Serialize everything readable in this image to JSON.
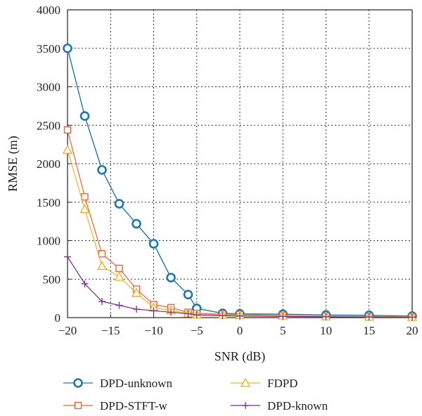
{
  "chart_data": {
    "type": "line",
    "xlabel": "SNR (dB)",
    "ylabel": "RMSE (m)",
    "xlim": [
      -20,
      20
    ],
    "ylim": [
      0,
      4000
    ],
    "xticks": [
      -20,
      -15,
      -10,
      -5,
      0,
      5,
      10,
      15,
      20
    ],
    "yticks": [
      0,
      500,
      1000,
      1500,
      2000,
      2500,
      3000,
      3500,
      4000
    ],
    "xtick_labels": [
      "−20",
      "−15",
      "−10",
      "−5",
      "0",
      "5",
      "10",
      "15",
      "20"
    ],
    "ytick_labels": [
      "0",
      "500",
      "1000",
      "1500",
      "2000",
      "2500",
      "3000",
      "3500",
      "4000"
    ],
    "grid": true,
    "legend_position": "bottom",
    "series": [
      {
        "name": "DPD-unknown",
        "color": "#1f77b4",
        "marker": "circle",
        "x": [
          -20,
          -18,
          -16,
          -14,
          -12,
          -10,
          -8,
          -6,
          -5,
          -2,
          0,
          5,
          10,
          15,
          20
        ],
        "y": [
          3500,
          2620,
          1920,
          1480,
          1220,
          960,
          520,
          300,
          120,
          55,
          50,
          45,
          35,
          30,
          20
        ]
      },
      {
        "name": "DPD-STFT-w",
        "color": "#e8653a",
        "marker": "square",
        "x": [
          -20,
          -18,
          -16,
          -14,
          -12,
          -10,
          -8,
          -6,
          -5,
          -2,
          0,
          5,
          10,
          15,
          20
        ],
        "y": [
          2440,
          1570,
          830,
          640,
          370,
          170,
          130,
          70,
          55,
          45,
          40,
          30,
          20,
          15,
          10
        ]
      },
      {
        "name": "FDPD",
        "color": "#f0b323",
        "marker": "triangle",
        "x": [
          -20,
          -18,
          -16,
          -14,
          -12,
          -10,
          -8,
          -6,
          -5,
          -2,
          0,
          5,
          10,
          15,
          20
        ],
        "y": [
          2180,
          1410,
          670,
          530,
          320,
          130,
          95,
          55,
          40,
          35,
          30,
          25,
          15,
          10,
          8
        ]
      },
      {
        "name": "DPD-known",
        "color": "#7b2d8e",
        "marker": "plus",
        "x": [
          -20,
          -18,
          -16,
          -14,
          -12,
          -10,
          -8,
          -6,
          -5,
          -2,
          0,
          5,
          10,
          15,
          20
        ],
        "y": [
          790,
          440,
          210,
          160,
          110,
          90,
          70,
          50,
          35,
          25,
          20,
          15,
          10,
          8,
          5
        ]
      }
    ]
  }
}
